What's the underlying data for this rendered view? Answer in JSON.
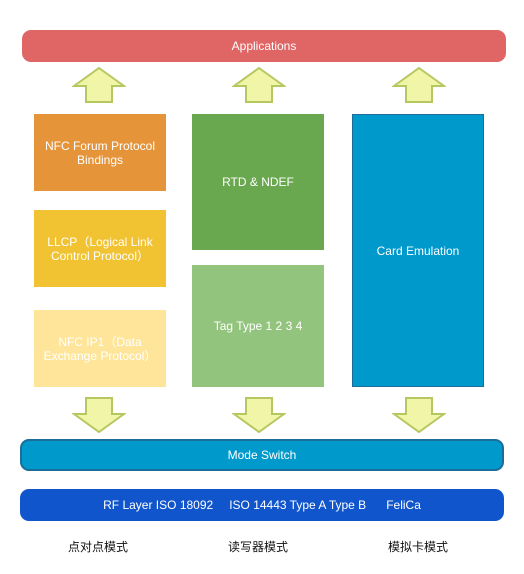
{
  "applications": "Applications",
  "column_p2p": {
    "protocol_bindings": "NFC Forum Protocol Bindings",
    "llcp": "LLCP（Logical Link Control Protocol）",
    "nfc_ip1": "NFC IP1（Data Exchange Protocol）"
  },
  "column_rw": {
    "rtd_ndef": "RTD & NDEF",
    "tag_type": "Tag Type 1 2 3 4"
  },
  "column_ce": {
    "card_emulation": "Card Emulation"
  },
  "mode_switch": "Mode Switch",
  "rf_layer": {
    "label": "RF Layer ISO 18092",
    "iso14443": "ISO 14443 Type A Type B",
    "felica": "FeliCa"
  },
  "modes": {
    "p2p": "点对点模式",
    "rw": "读写器模式",
    "ce": "模拟卡模式"
  },
  "colors": {
    "applications": "#e06666",
    "protocol_bindings": "#e6943a",
    "llcp": "#f1c232",
    "nfc_ip1": "#ffe599",
    "rtd_ndef": "#6aa84f",
    "tag_type": "#93c47d",
    "card_emulation": "#0099cc",
    "mode_switch": "#0099cc",
    "rf_layer": "#1155cc",
    "arrow_fill": "#f0f5a8",
    "arrow_stroke": "#b7c760"
  }
}
